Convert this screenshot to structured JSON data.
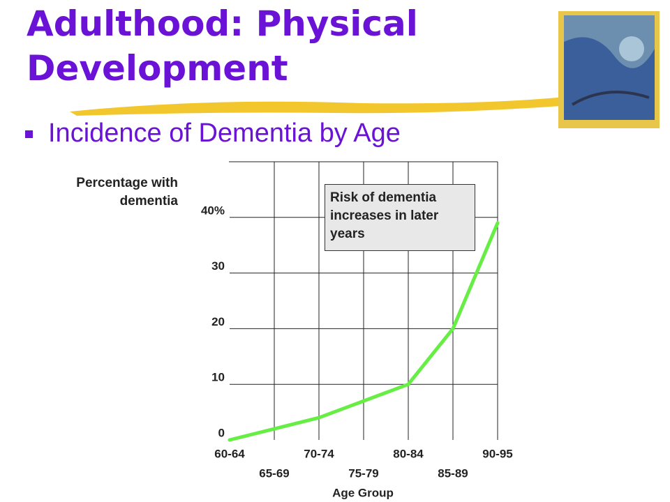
{
  "title": "Adulthood: Physical Development",
  "bullet": "Incidence of Dementia by Age",
  "chart_data": {
    "type": "line",
    "y_label": "Percentage with dementia",
    "x_label": "Age Group",
    "annotation": "Risk of dementia increases in later years",
    "categories": [
      "60-64",
      "65-69",
      "70-74",
      "75-79",
      "80-84",
      "85-89",
      "90-95"
    ],
    "values": [
      0,
      2,
      4,
      7,
      10,
      20,
      39
    ],
    "color": "#66ee44",
    "ylim": [
      0,
      50
    ],
    "yticks": [
      0,
      10,
      20,
      30,
      {
        "value": 40,
        "label": "40%"
      }
    ],
    "grid": true
  }
}
